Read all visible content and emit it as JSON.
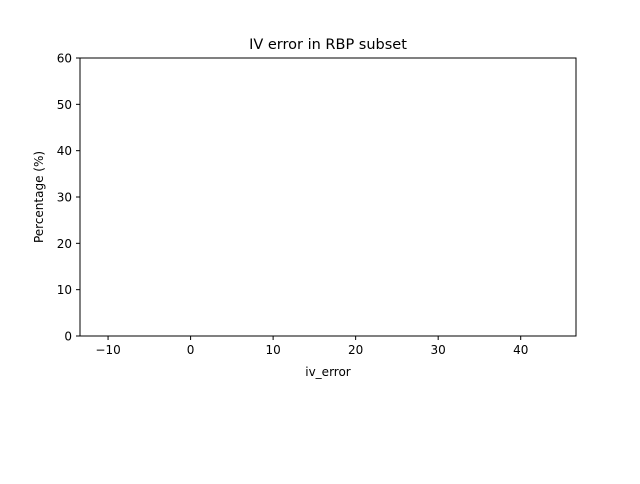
{
  "chart_data": {
    "type": "bar",
    "title": "IV error in RBP subset",
    "xlabel": "iv_error",
    "ylabel": "Percentage (%)",
    "xlim": [
      -13.4,
      46.7
    ],
    "ylim": [
      0,
      60
    ],
    "x_ticks": [
      -10,
      0,
      10,
      20,
      30,
      40
    ],
    "x_tick_labels": [
      "−10",
      "0",
      "10",
      "20",
      "30",
      "40"
    ],
    "y_ticks": [
      0,
      10,
      20,
      30,
      40,
      50,
      60
    ],
    "y_tick_labels": [
      "0",
      "10",
      "20",
      "30",
      "40",
      "50",
      "60"
    ],
    "series": [],
    "grid": false,
    "legend": "none"
  }
}
